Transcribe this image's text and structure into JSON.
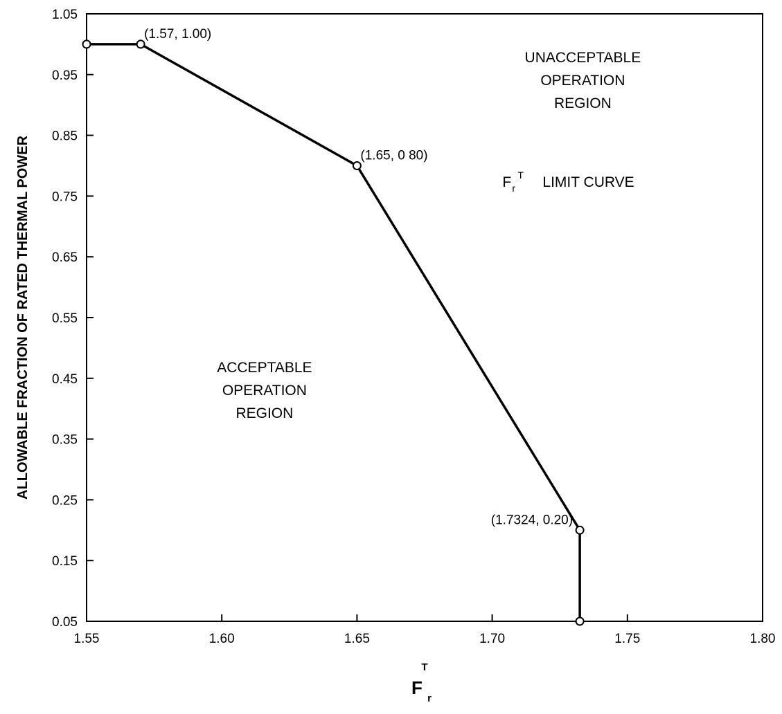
{
  "chart_data": {
    "type": "line",
    "title": "",
    "xlabel": "F",
    "xlabel_subscript": "r",
    "xlabel_superscript": "T",
    "ylabel": "ALLOWABLE FRACTION OF RATED THERMAL POWER",
    "xlim": [
      1.55,
      1.8
    ],
    "ylim": [
      0.05,
      1.05
    ],
    "x_ticks": [
      1.55,
      1.6,
      1.65,
      1.7,
      1.75,
      1.8
    ],
    "x_tick_labels": [
      "1.55",
      "1.60",
      "1.65",
      "1.70",
      "1.75",
      "1.80"
    ],
    "y_ticks": [
      0.05,
      0.15,
      0.25,
      0.35,
      0.45,
      0.55,
      0.65,
      0.75,
      0.85,
      0.95,
      1.05
    ],
    "y_tick_labels": [
      "0.05",
      "0.15",
      "0.25",
      "0.35",
      "0.45",
      "0.55",
      "0.65",
      "0.75",
      "0.85",
      "0.95",
      "1.05"
    ],
    "grid": false,
    "series": [
      {
        "x": [
          1.55,
          1.57,
          1.65,
          1.7324,
          1.7324
        ],
        "y": [
          1.0,
          1.0,
          0.8,
          0.2,
          0.05
        ],
        "color": "#000000"
      }
    ],
    "point_labels": [
      {
        "text": "(1.57, 1.00)",
        "x": 1.57,
        "y": 1.0,
        "anchor": "start"
      },
      {
        "text": "(1.65, 0 80)",
        "x": 1.65,
        "y": 0.8,
        "anchor": "start"
      },
      {
        "text": "(1.7324, 0.20)",
        "x": 1.7324,
        "y": 0.2,
        "anchor": "end"
      }
    ],
    "annotations": [
      {
        "lines": [
          "UNACCEPTABLE",
          "OPERATION",
          "REGION"
        ],
        "x": 1.7335,
        "y": 0.97
      },
      {
        "lines": [
          "ACCEPTABLE",
          "OPERATION",
          "REGION"
        ],
        "x": 1.6158,
        "y": 0.46
      }
    ],
    "curve_annotation": {
      "main": "F",
      "subscript": "r",
      "superscript": "T",
      "rest": "LIMIT CURVE",
      "x": 1.7038,
      "y": 0.765
    }
  }
}
